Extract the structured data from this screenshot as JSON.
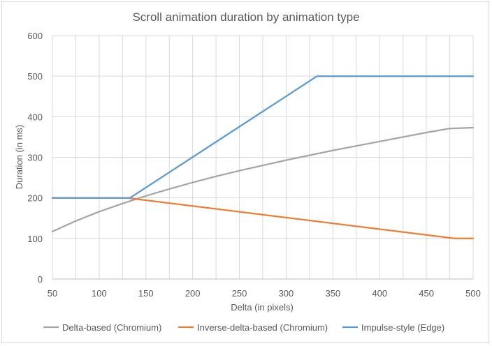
{
  "chart_data": {
    "type": "line",
    "title": "Scroll animation duration by animation type",
    "xlabel": "Delta (in pixels)",
    "ylabel": "Duration (in ms)",
    "xlim": [
      50,
      500
    ],
    "ylim": [
      0,
      600
    ],
    "x_ticks": [
      50,
      100,
      150,
      200,
      250,
      300,
      350,
      400,
      450,
      500
    ],
    "y_ticks": [
      0,
      100,
      200,
      300,
      400,
      500,
      600
    ],
    "x_gridlines": [
      50,
      75,
      100,
      125,
      150,
      175,
      200,
      225,
      250,
      275,
      300,
      325,
      350,
      375,
      400,
      425,
      450,
      475,
      500
    ],
    "grid": true,
    "legend_position": "bottom",
    "series": [
      {
        "name": "Delta-based (Chromium)",
        "color": "#a5a5a5",
        "x": [
          50,
          75,
          100,
          125,
          150,
          175,
          200,
          225,
          250,
          275,
          300,
          325,
          350,
          375,
          400,
          425,
          450,
          475,
          500
        ],
        "y": [
          117,
          143,
          166,
          186,
          205,
          222,
          238,
          253,
          267,
          280,
          293,
          305,
          317,
          328,
          339,
          350,
          361,
          371,
          373
        ]
      },
      {
        "name": "Inverse-delta-based (Chromium)",
        "color": "#ed7d31",
        "x": [
          50,
          130,
          480,
          500
        ],
        "y": [
          200,
          200,
          100,
          100
        ]
      },
      {
        "name": "Impulse-style (Edge)",
        "color": "#5b9bd5",
        "x": [
          50,
          133,
          333,
          500
        ],
        "y": [
          200,
          200,
          500,
          500
        ]
      }
    ]
  }
}
